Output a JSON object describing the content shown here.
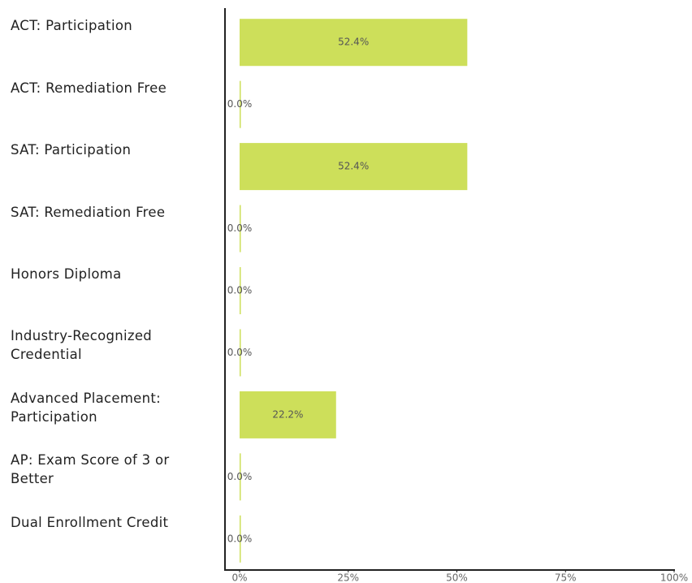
{
  "chart_data": {
    "type": "bar",
    "orientation": "horizontal",
    "categories": [
      "ACT: Participation",
      "ACT: Remediation Free",
      "SAT: Participation",
      "SAT: Remediation Free",
      "Honors Diploma",
      "Industry-Recognized Credential",
      "Advanced Placement: Participation",
      "AP: Exam Score of 3 or Better",
      "Dual Enrollment Credit"
    ],
    "values": [
      52.4,
      0,
      52.4,
      0,
      0,
      0,
      22.2,
      0,
      0
    ],
    "value_labels": [
      "52.4%",
      "0.0%",
      "52.4%",
      "0.0%",
      "0.0%",
      "0.0%",
      "22.2%",
      "0.0%",
      "0.0%"
    ],
    "color": "#cddf5a",
    "xlim": [
      0,
      100
    ],
    "xticks": [
      {
        "value": 0,
        "label": "0%"
      },
      {
        "value": 25,
        "label": "25%"
      },
      {
        "value": 50,
        "label": "50%"
      },
      {
        "value": 75,
        "label": "75%"
      },
      {
        "value": 100,
        "label": "100%"
      }
    ]
  }
}
